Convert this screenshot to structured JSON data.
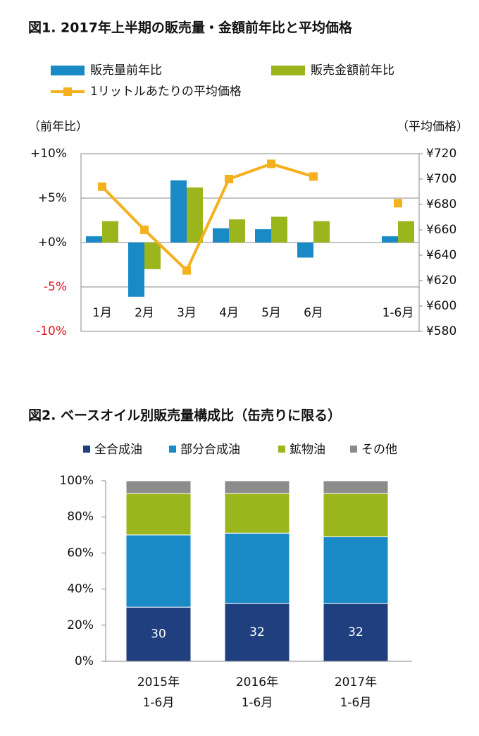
{
  "chart_data": [
    {
      "type": "bar",
      "title": "図1. 2017年上半期の販売量・金額前年比と平均価格",
      "y_label": "（前年比）",
      "y2_label": "（平均価格）",
      "categories": [
        "1月",
        "2月",
        "3月",
        "4月",
        "5月",
        "6月",
        null,
        "1-6月"
      ],
      "series": [
        {
          "name": "販売量前年比",
          "color": "#1a8ac6",
          "values": [
            0.7,
            -6.1,
            7.0,
            1.6,
            1.5,
            -1.7,
            null,
            0.7
          ]
        },
        {
          "name": "販売金額前年比",
          "color": "#9bb51c",
          "values": [
            2.4,
            -3.0,
            6.2,
            2.6,
            2.9,
            2.4,
            null,
            2.4
          ]
        },
        {
          "name": "1リットルあたりの平均価格",
          "color": "#f5b01e",
          "type": "line",
          "axis": "y2",
          "values": [
            694,
            660,
            628,
            700,
            712,
            702,
            null,
            681
          ]
        }
      ],
      "ylim": [
        -10,
        10
      ],
      "yticks": [
        {
          "value": 10,
          "label": "+10%"
        },
        {
          "value": 5,
          "label": "+5%"
        },
        {
          "value": 0,
          "label": "+0%"
        },
        {
          "value": -5,
          "label": "-5%"
        },
        {
          "value": -10,
          "label": "-10%"
        }
      ],
      "y2lim": [
        580,
        720
      ],
      "y2ticks": [
        {
          "value": 720,
          "label": "¥720"
        },
        {
          "value": 700,
          "label": "¥700"
        },
        {
          "value": 680,
          "label": "¥680"
        },
        {
          "value": 660,
          "label": "¥660"
        },
        {
          "value": 640,
          "label": "¥640"
        },
        {
          "value": 620,
          "label": "¥620"
        },
        {
          "value": 600,
          "label": "¥600"
        },
        {
          "value": 580,
          "label": "¥580"
        }
      ],
      "negative_tick_color": "#e0141e",
      "grid": true
    },
    {
      "type": "stacked_bar",
      "title": "図2. ベースオイル別販売量構成比（缶売りに限る）",
      "categories": [
        "2015年 1-6月",
        "2016年 1-6月",
        "2017年 1-6月"
      ],
      "series": [
        {
          "name": "全合成油",
          "color": "#1f3f7f",
          "values": [
            30,
            32,
            32
          ],
          "show_labels": true
        },
        {
          "name": "部分合成油",
          "color": "#1a8ac6",
          "values": [
            40,
            39,
            37
          ]
        },
        {
          "name": "鉱物油",
          "color": "#9bb51c",
          "values": [
            23,
            22,
            24
          ]
        },
        {
          "name": "その他",
          "color": "#8c8c8c",
          "values": [
            7,
            7,
            7
          ]
        }
      ],
      "ylim": [
        0,
        100
      ],
      "yticks": [
        {
          "value": 0,
          "label": "0%"
        },
        {
          "value": 20,
          "label": "20%"
        },
        {
          "value": 40,
          "label": "40%"
        },
        {
          "value": 60,
          "label": "60%"
        },
        {
          "value": 80,
          "label": "80%"
        },
        {
          "value": 100,
          "label": "100%"
        }
      ]
    }
  ]
}
